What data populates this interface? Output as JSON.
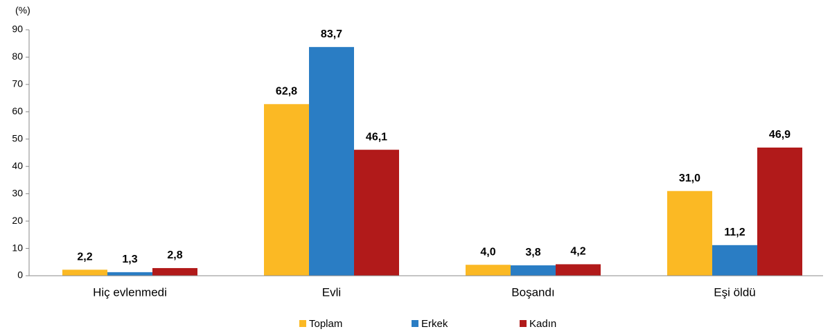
{
  "chart_data": {
    "type": "bar",
    "y_label": "(%)",
    "categories": [
      "Hiç evlenmedi",
      "Evli",
      "Boşandı",
      "Eşi öldü"
    ],
    "series": [
      {
        "name": "Toplam",
        "color": "#fbb924",
        "values": [
          2.2,
          62.8,
          4.0,
          31.0
        ],
        "value_labels": [
          "2,2",
          "62,8",
          "4,0",
          "31,0"
        ]
      },
      {
        "name": "Erkek",
        "color": "#2a7dc4",
        "values": [
          1.3,
          83.7,
          3.8,
          11.2
        ],
        "value_labels": [
          "1,3",
          "83,7",
          "3,8",
          "11,2"
        ]
      },
      {
        "name": "Kadın",
        "color": "#b11a1a",
        "values": [
          2.8,
          46.1,
          4.2,
          46.9
        ],
        "value_labels": [
          "2,8",
          "46,1",
          "4,2",
          "46,9"
        ]
      }
    ],
    "ylim": [
      0,
      90
    ],
    "yticks": [
      0,
      10,
      20,
      30,
      40,
      50,
      60,
      70,
      80,
      90
    ],
    "grid": false,
    "legend": "bottom"
  }
}
